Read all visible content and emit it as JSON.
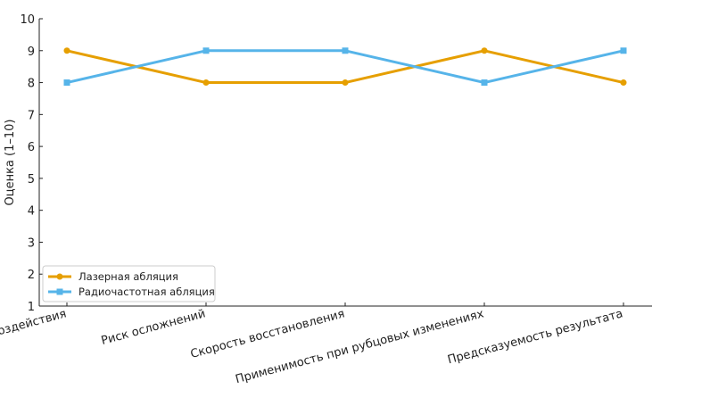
{
  "chart_data": {
    "type": "line",
    "categories": [
      "Точность воздействия",
      "Риск осложнений",
      "Скорость восстановления",
      "Применимость при рубцовых изменениях",
      "Предсказуемость результата"
    ],
    "series": [
      {
        "name": "Лазерная абляция",
        "values": [
          9,
          8,
          8,
          9,
          8
        ],
        "color": "#E69F00",
        "marker": "circle"
      },
      {
        "name": "Радиочастотная абляция",
        "values": [
          8,
          9,
          9,
          8,
          9
        ],
        "color": "#56B4E9",
        "marker": "square"
      }
    ],
    "ylabel": "Оценка (1–10)",
    "xlabel": "",
    "ylim": [
      1,
      10
    ],
    "yticks": [
      1,
      2,
      3,
      4,
      5,
      6,
      7,
      8,
      9,
      10
    ],
    "grid": false,
    "legend_position": "lower-left"
  }
}
